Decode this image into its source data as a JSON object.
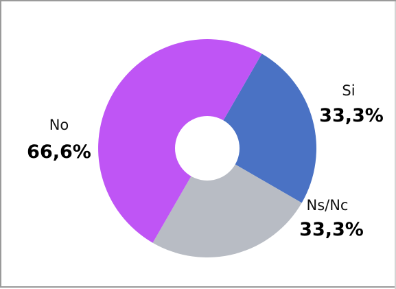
{
  "chart_data": {
    "type": "pie",
    "donut": true,
    "categories": [
      "Si",
      "Ns/Nc",
      "No"
    ],
    "values": [
      33.3,
      33.3,
      66.6
    ],
    "labels": [
      "33,3%",
      "33,3%",
      "66,6%"
    ],
    "colors": [
      "#4a72c4",
      "#b8bcc4",
      "#bf55f5"
    ],
    "title": "",
    "legend": "none"
  }
}
